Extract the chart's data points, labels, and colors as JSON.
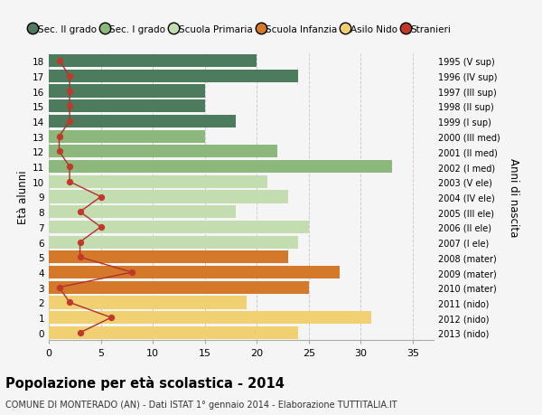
{
  "ages": [
    18,
    17,
    16,
    15,
    14,
    13,
    12,
    11,
    10,
    9,
    8,
    7,
    6,
    5,
    4,
    3,
    2,
    1,
    0
  ],
  "right_labels": [
    "1995 (V sup)",
    "1996 (IV sup)",
    "1997 (III sup)",
    "1998 (II sup)",
    "1999 (I sup)",
    "2000 (III med)",
    "2001 (II med)",
    "2002 (I med)",
    "2003 (V ele)",
    "2004 (IV ele)",
    "2005 (III ele)",
    "2006 (II ele)",
    "2007 (I ele)",
    "2008 (mater)",
    "2009 (mater)",
    "2010 (mater)",
    "2011 (nido)",
    "2012 (nido)",
    "2013 (nido)"
  ],
  "bar_values": [
    20,
    24,
    15,
    15,
    18,
    15,
    22,
    33,
    21,
    23,
    18,
    25,
    24,
    23,
    28,
    25,
    19,
    31,
    24
  ],
  "bar_colors": [
    "#4d7b5e",
    "#4d7b5e",
    "#4d7b5e",
    "#4d7b5e",
    "#4d7b5e",
    "#8db87c",
    "#8db87c",
    "#8db87c",
    "#c3ddb0",
    "#c3ddb0",
    "#c3ddb0",
    "#c3ddb0",
    "#c3ddb0",
    "#d4782a",
    "#d4782a",
    "#d4782a",
    "#f0d070",
    "#f0d070",
    "#f0d070"
  ],
  "stranieri_values": [
    1,
    2,
    2,
    2,
    2,
    1,
    1,
    2,
    2,
    5,
    3,
    5,
    3,
    3,
    8,
    1,
    2,
    6,
    3
  ],
  "legend_labels": [
    "Sec. II grado",
    "Sec. I grado",
    "Scuola Primaria",
    "Scuola Infanzia",
    "Asilo Nido",
    "Stranieri"
  ],
  "legend_colors": [
    "#4d7b5e",
    "#8db87c",
    "#c3ddb0",
    "#d4782a",
    "#f0d070",
    "#c0392b"
  ],
  "title": "Popolazione per età scolastica - 2014",
  "subtitle": "COMUNE DI MONTERADO (AN) - Dati ISTAT 1° gennaio 2014 - Elaborazione TUTTITALIA.IT",
  "ylabel_left": "Età alunni",
  "ylabel_right": "Anni di nascita",
  "xlim": [
    0,
    37
  ],
  "xticks": [
    0,
    5,
    10,
    15,
    20,
    25,
    30,
    35
  ],
  "background_color": "#f5f5f5",
  "grid_color": "#cccccc"
}
